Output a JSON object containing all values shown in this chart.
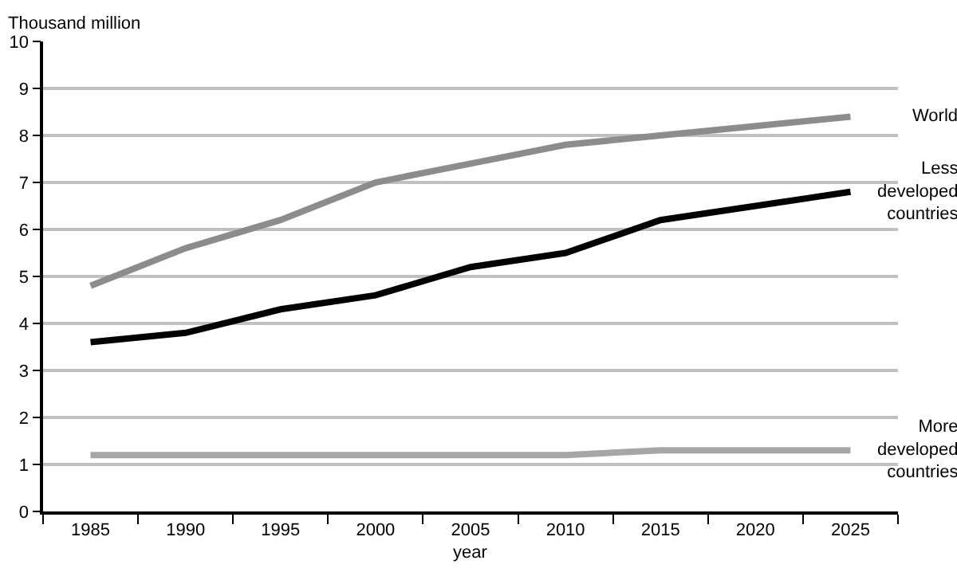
{
  "chart_data": {
    "type": "line",
    "ylabel": "Thousand million",
    "xlabel": "year",
    "categories": [
      "1985",
      "1990",
      "1995",
      "2000",
      "2005",
      "2010",
      "2015",
      "2020",
      "2025"
    ],
    "series": [
      {
        "name": "World",
        "color": "#8c8c8c",
        "values": [
          4.8,
          5.6,
          6.2,
          7.0,
          7.4,
          7.8,
          8.0,
          8.2,
          8.4
        ]
      },
      {
        "name": "Less developed countries",
        "color": "#000000",
        "values": [
          3.6,
          3.8,
          4.3,
          4.6,
          5.2,
          5.5,
          6.2,
          6.5,
          6.8
        ]
      },
      {
        "name": "More developed countries",
        "color": "#a6a6a6",
        "values": [
          1.2,
          1.2,
          1.2,
          1.2,
          1.2,
          1.2,
          1.3,
          1.3,
          1.3
        ]
      }
    ],
    "ylim": [
      0,
      10
    ],
    "yticks": [
      0,
      1,
      2,
      3,
      4,
      5,
      6,
      7,
      8,
      9,
      10
    ],
    "grid": "y",
    "legend": false,
    "marker": "none",
    "line_style": "solid"
  }
}
